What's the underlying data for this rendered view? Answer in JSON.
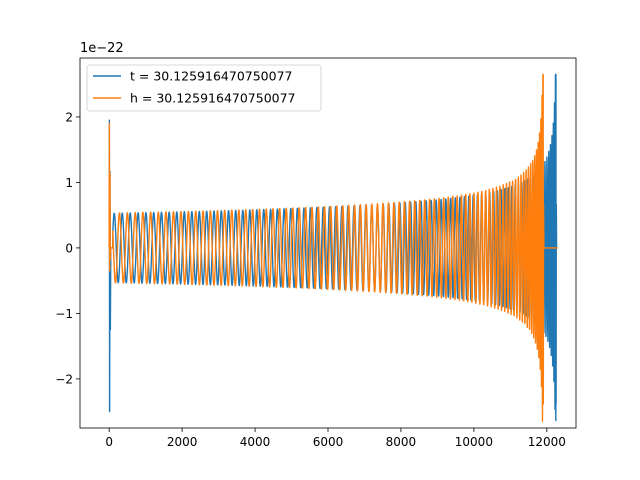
{
  "chart_data": {
    "type": "line",
    "title": "",
    "xlabel": "",
    "ylabel": "",
    "xlim": [
      -800,
      12800
    ],
    "ylim": [
      -2.75,
      2.9
    ],
    "y_offset_label": "1e−22",
    "xticks": [
      0,
      2000,
      4000,
      6000,
      8000,
      10000,
      12000
    ],
    "xtick_labels": [
      "0",
      "2000",
      "4000",
      "6000",
      "8000",
      "10000",
      "12000"
    ],
    "yticks": [
      -2,
      -1,
      0,
      1,
      2
    ],
    "ytick_labels": [
      "−2",
      "−1",
      "0",
      "1",
      "2"
    ],
    "grid": false,
    "legend": "top-left",
    "series": [
      {
        "name": "t = 30.125916470750077",
        "color": "#1f77b4",
        "x_start": 0,
        "x_end": 12250,
        "merger_x": 12250,
        "initial_spike": [
          1.95,
          -2.5
        ],
        "base_amplitude": 0.53,
        "peak_amplitude": 2.65
      },
      {
        "name": "h = 30.125916470750077",
        "color": "#ff7f0e",
        "x_start": 0,
        "x_end": 12300,
        "merger_x": 11900,
        "initial_spike": [
          1.9,
          -0.35
        ],
        "base_amplitude": 0.53,
        "peak_amplitude": 2.65
      }
    ]
  }
}
